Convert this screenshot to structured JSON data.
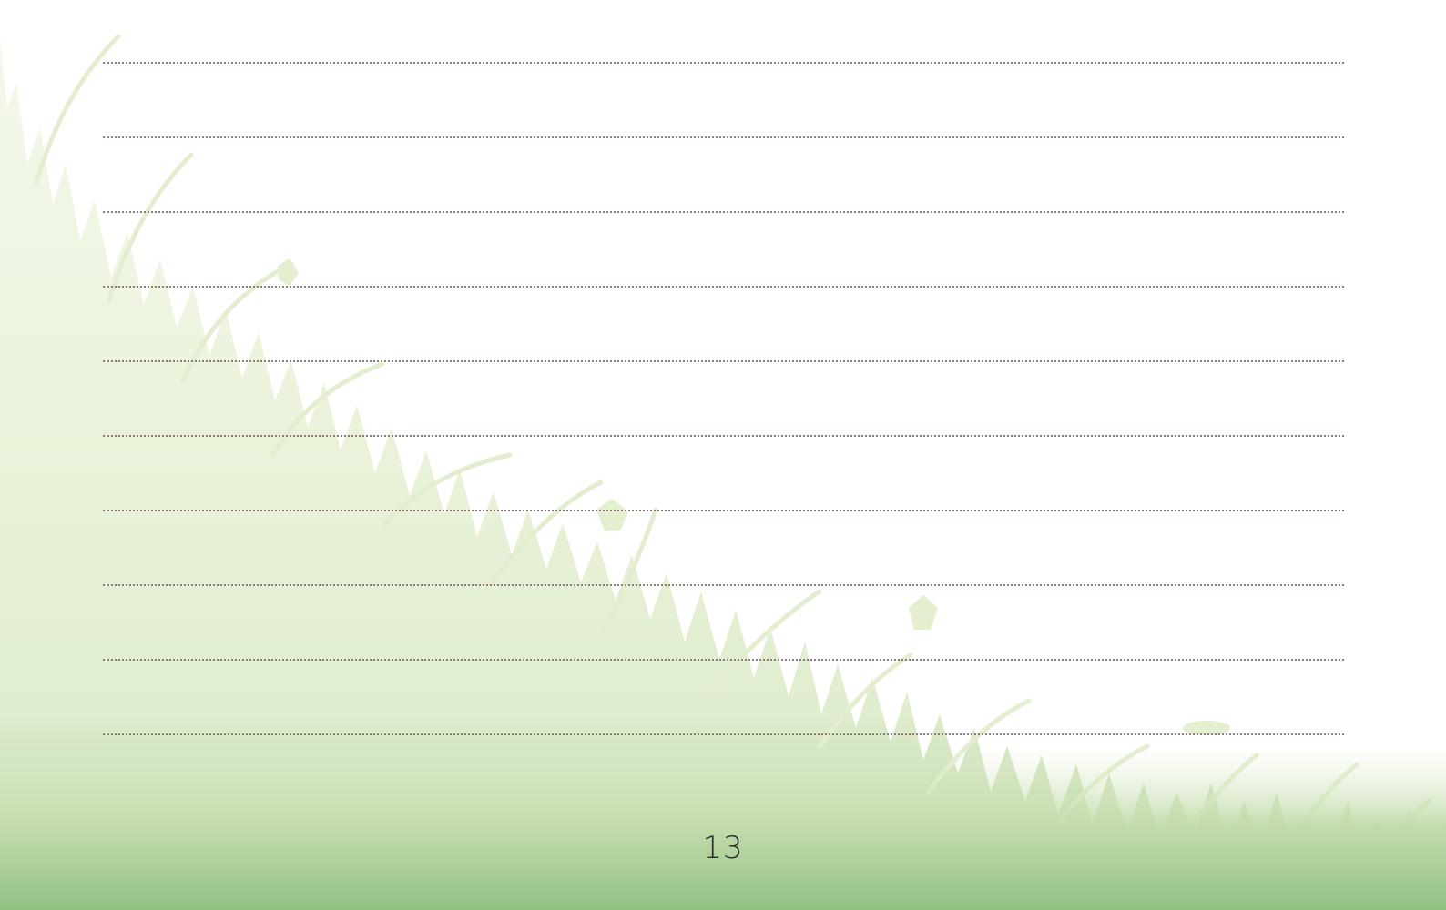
{
  "page": {
    "page_number": "13",
    "ruled_line_count": 10
  },
  "background": {
    "illustration": "grass-meadow-silhouette",
    "colors": {
      "pale_green": "#eef5e0",
      "light_green": "#dbeac6",
      "mid_green": "#b9d7a2",
      "deep_green": "#95c285",
      "rule_color": "#8b7a78"
    }
  }
}
